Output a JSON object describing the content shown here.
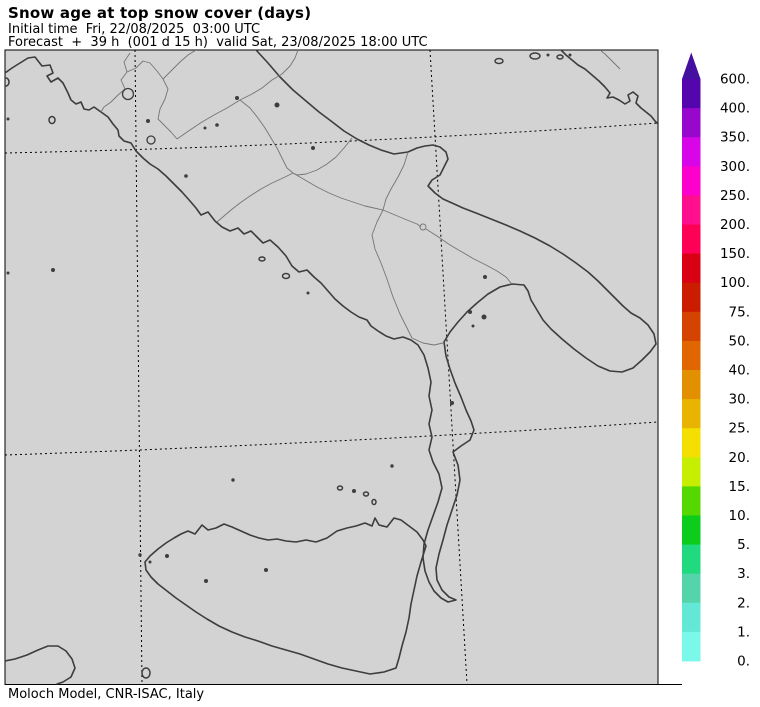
{
  "header": {
    "title": "Snow age at top snow cover (days)",
    "initial_time_line": "Initial time  Fri, 22/08/2025  03:00 UTC",
    "forecast_line": "Forecast  +  39 h  (001 d 15 h)  valid Sat, 23/08/2025 18:00 UTC"
  },
  "footer": {
    "credit": "Moloch Model, CNR-ISAC, Italy"
  },
  "colorbar": {
    "levels_top_to_bottom": [
      "600.",
      "400.",
      "350.",
      "300.",
      "250.",
      "200.",
      "150.",
      "100.",
      "75.",
      "50.",
      "40.",
      "30.",
      "25.",
      "20.",
      "15.",
      "10.",
      "5.",
      "3.",
      "2.",
      "1.",
      "0."
    ],
    "segment_colors_top_to_bottom": [
      "#5505ad",
      "#9807cc",
      "#d705e8",
      "#fd00cc",
      "#ff0f8d",
      "#fe0055",
      "#d80012",
      "#cc1c00",
      "#d54300",
      "#e06600",
      "#e39000",
      "#e8b400",
      "#f5df00",
      "#c6ee00",
      "#55d800",
      "#0ccc1c",
      "#21d97f",
      "#55d4ac",
      "#63e8d5",
      "#7af8ea"
    ],
    "arrow_color": "#4410a0"
  },
  "map": {
    "background_color": "#d3d3d3",
    "coastline_color": "#3d3d3d",
    "region_border_color": "#757575",
    "gridline_color": "#000000",
    "frame_color": "#000000"
  }
}
